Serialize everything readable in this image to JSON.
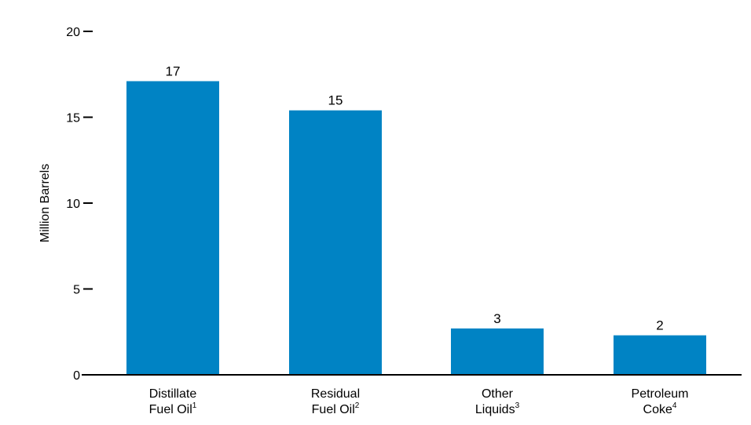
{
  "chart_data": {
    "type": "bar",
    "title": "",
    "xlabel": "",
    "ylabel": "Million Barrels",
    "ylim": [
      0,
      20
    ],
    "yticks": [
      0,
      5,
      10,
      15,
      20
    ],
    "grid": false,
    "legend": "none",
    "bar_color": "#0083C4",
    "categories": [
      {
        "line1": "Distillate",
        "line2": "Fuel Oil",
        "note": "1"
      },
      {
        "line1": "Residual",
        "line2": "Fuel Oil",
        "note": "2"
      },
      {
        "line1": "Other",
        "line2": "Liquids",
        "note": "3"
      },
      {
        "line1": "Petroleum",
        "line2": "Coke",
        "note": "4"
      }
    ],
    "values": [
      17.1,
      15.4,
      2.7,
      2.3
    ],
    "value_labels": [
      "17",
      "15",
      "3",
      "2"
    ]
  }
}
